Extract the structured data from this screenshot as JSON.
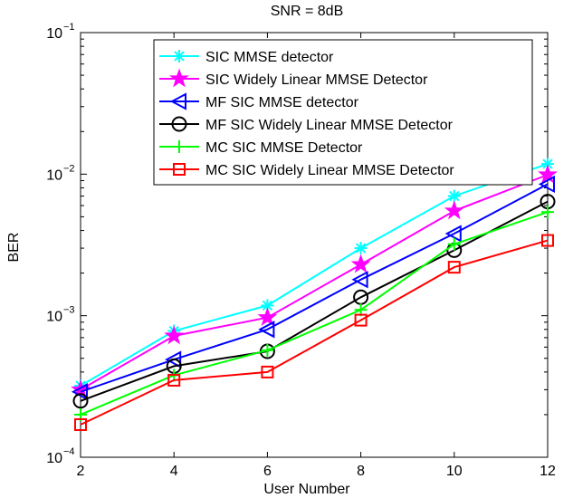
{
  "chart_data": {
    "type": "line",
    "title": "SNR = 8dB",
    "xlabel": "User Number",
    "ylabel": "BER",
    "x": [
      2,
      4,
      6,
      8,
      10,
      12
    ],
    "xlim": [
      2,
      12
    ],
    "ylim": [
      0.0001,
      0.1
    ],
    "yscale": "log",
    "y_tick_labels": [
      {
        "base": "10",
        "exp": "−4",
        "value": 0.0001
      },
      {
        "base": "10",
        "exp": "−3",
        "value": 0.001
      },
      {
        "base": "10",
        "exp": "−2",
        "value": 0.01
      },
      {
        "base": "10",
        "exp": "−1",
        "value": 0.1
      }
    ],
    "x_tick_labels": [
      "2",
      "4",
      "6",
      "8",
      "10",
      "12"
    ],
    "grid": false,
    "legend_position": "top-right",
    "series": [
      {
        "name": "SIC MMSE detector",
        "color": "#00ffff",
        "marker": "asterisk",
        "values": [
          0.00032,
          0.00078,
          0.00118,
          0.003,
          0.007,
          0.0118
        ]
      },
      {
        "name": "SIC Widely Linear MMSE Detector",
        "color": "#ff00ff",
        "marker": "star",
        "values": [
          0.0003,
          0.00072,
          0.00097,
          0.0023,
          0.0055,
          0.0099
        ]
      },
      {
        "name": "MF SIC MMSE detector",
        "color": "#0000ff",
        "marker": "triangle-left",
        "values": [
          0.00029,
          0.00049,
          0.0008,
          0.0018,
          0.0038,
          0.0085
        ]
      },
      {
        "name": "MF SIC Widely Linear MMSE Detector",
        "color": "#000000",
        "marker": "circle",
        "values": [
          0.00025,
          0.00044,
          0.00056,
          0.00135,
          0.0029,
          0.0064
        ]
      },
      {
        "name": "MC SIC MMSE Detector",
        "color": "#00ff00",
        "marker": "plus",
        "values": [
          0.0002,
          0.00038,
          0.00057,
          0.0011,
          0.0032,
          0.0054
        ]
      },
      {
        "name": "MC SIC Widely Linear MMSE Detector",
        "color": "#ff0000",
        "marker": "square",
        "values": [
          0.00017,
          0.00035,
          0.0004,
          0.00093,
          0.0022,
          0.0034
        ]
      }
    ]
  }
}
